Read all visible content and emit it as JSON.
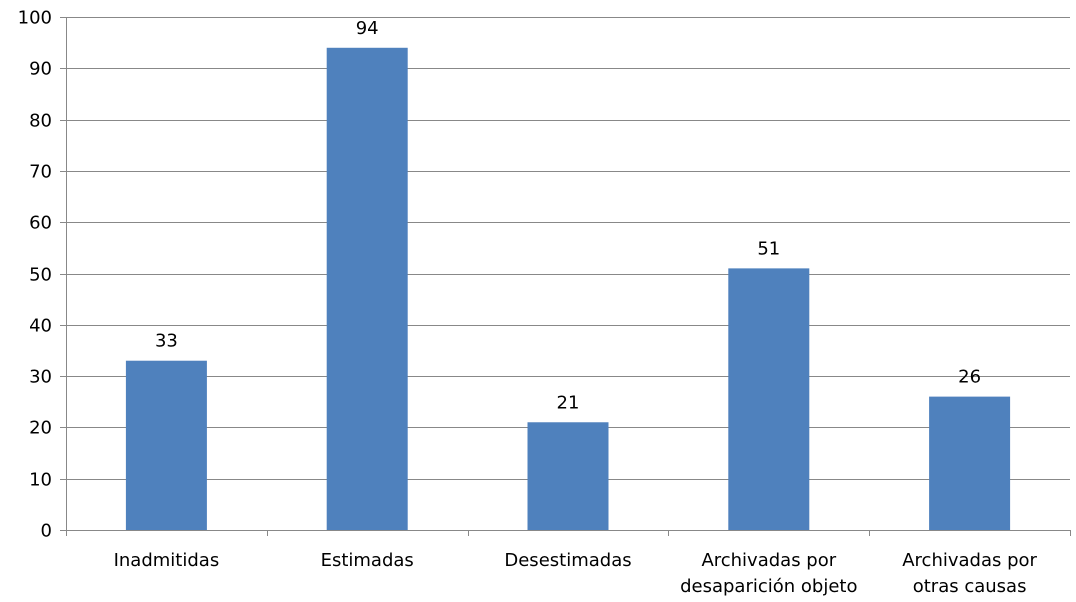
{
  "chart_data": {
    "type": "bar",
    "categories": [
      [
        "Inadmitidas"
      ],
      [
        "Estimadas"
      ],
      [
        "Desestimadas"
      ],
      [
        "Archivadas por",
        "desaparición objeto"
      ],
      [
        "Archivadas por",
        "otras causas"
      ]
    ],
    "values": [
      33,
      94,
      21,
      51,
      26
    ],
    "ylim": [
      0,
      100
    ],
    "yticks": [
      0,
      10,
      20,
      30,
      40,
      50,
      60,
      70,
      80,
      90,
      100
    ],
    "grid": true,
    "legend": "none",
    "title": "",
    "xlabel": "",
    "ylabel": "",
    "colors": {
      "bar": "#4f81bd",
      "grid": "#888888",
      "axis": "#888888"
    }
  }
}
